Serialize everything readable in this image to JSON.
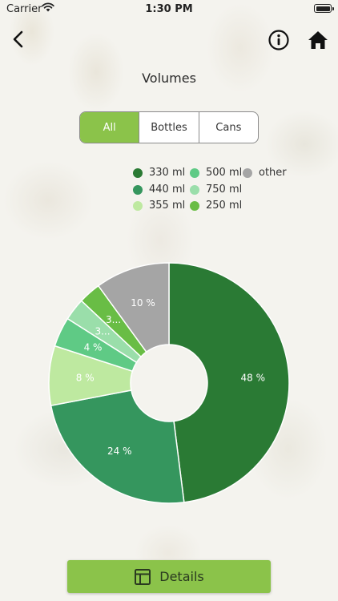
{
  "status_bar": {
    "carrier": "Carrier",
    "time": "1:30 PM"
  },
  "page": {
    "title": "Volumes"
  },
  "segmented": {
    "tabs": [
      "All",
      "Bottles",
      "Cans"
    ],
    "selected": 0
  },
  "legend": {
    "items": [
      {
        "label": "330 ml",
        "color": "#2a7a34"
      },
      {
        "label": "500 ml",
        "color": "#5fca85"
      },
      {
        "label": "other",
        "color": "#a5a5a5"
      },
      {
        "label": "440 ml",
        "color": "#35965e"
      },
      {
        "label": "750 ml",
        "color": "#9adeaa"
      },
      {
        "label": "355 ml",
        "color": "#bee9a0"
      },
      {
        "label": "250 ml",
        "color": "#69bd45"
      }
    ]
  },
  "chart_data": {
    "type": "pie",
    "slices": [
      {
        "label": "330 ml",
        "value": 48,
        "display": "48 %",
        "color": "#2a7a34"
      },
      {
        "label": "440 ml",
        "value": 24,
        "display": "24 %",
        "color": "#35965e"
      },
      {
        "label": "355 ml",
        "value": 8,
        "display": "8 %",
        "color": "#bee9a0"
      },
      {
        "label": "500 ml",
        "value": 4,
        "display": "4 %",
        "color": "#5fca85"
      },
      {
        "label": "750 ml",
        "value": 3,
        "display": "3...",
        "color": "#9adeaa"
      },
      {
        "label": "250 ml",
        "value": 3,
        "display": "3...",
        "color": "#69bd45"
      },
      {
        "label": "other",
        "value": 10,
        "display": "10 %",
        "color": "#a5a5a5"
      }
    ]
  },
  "footer": {
    "details_label": "Details"
  }
}
